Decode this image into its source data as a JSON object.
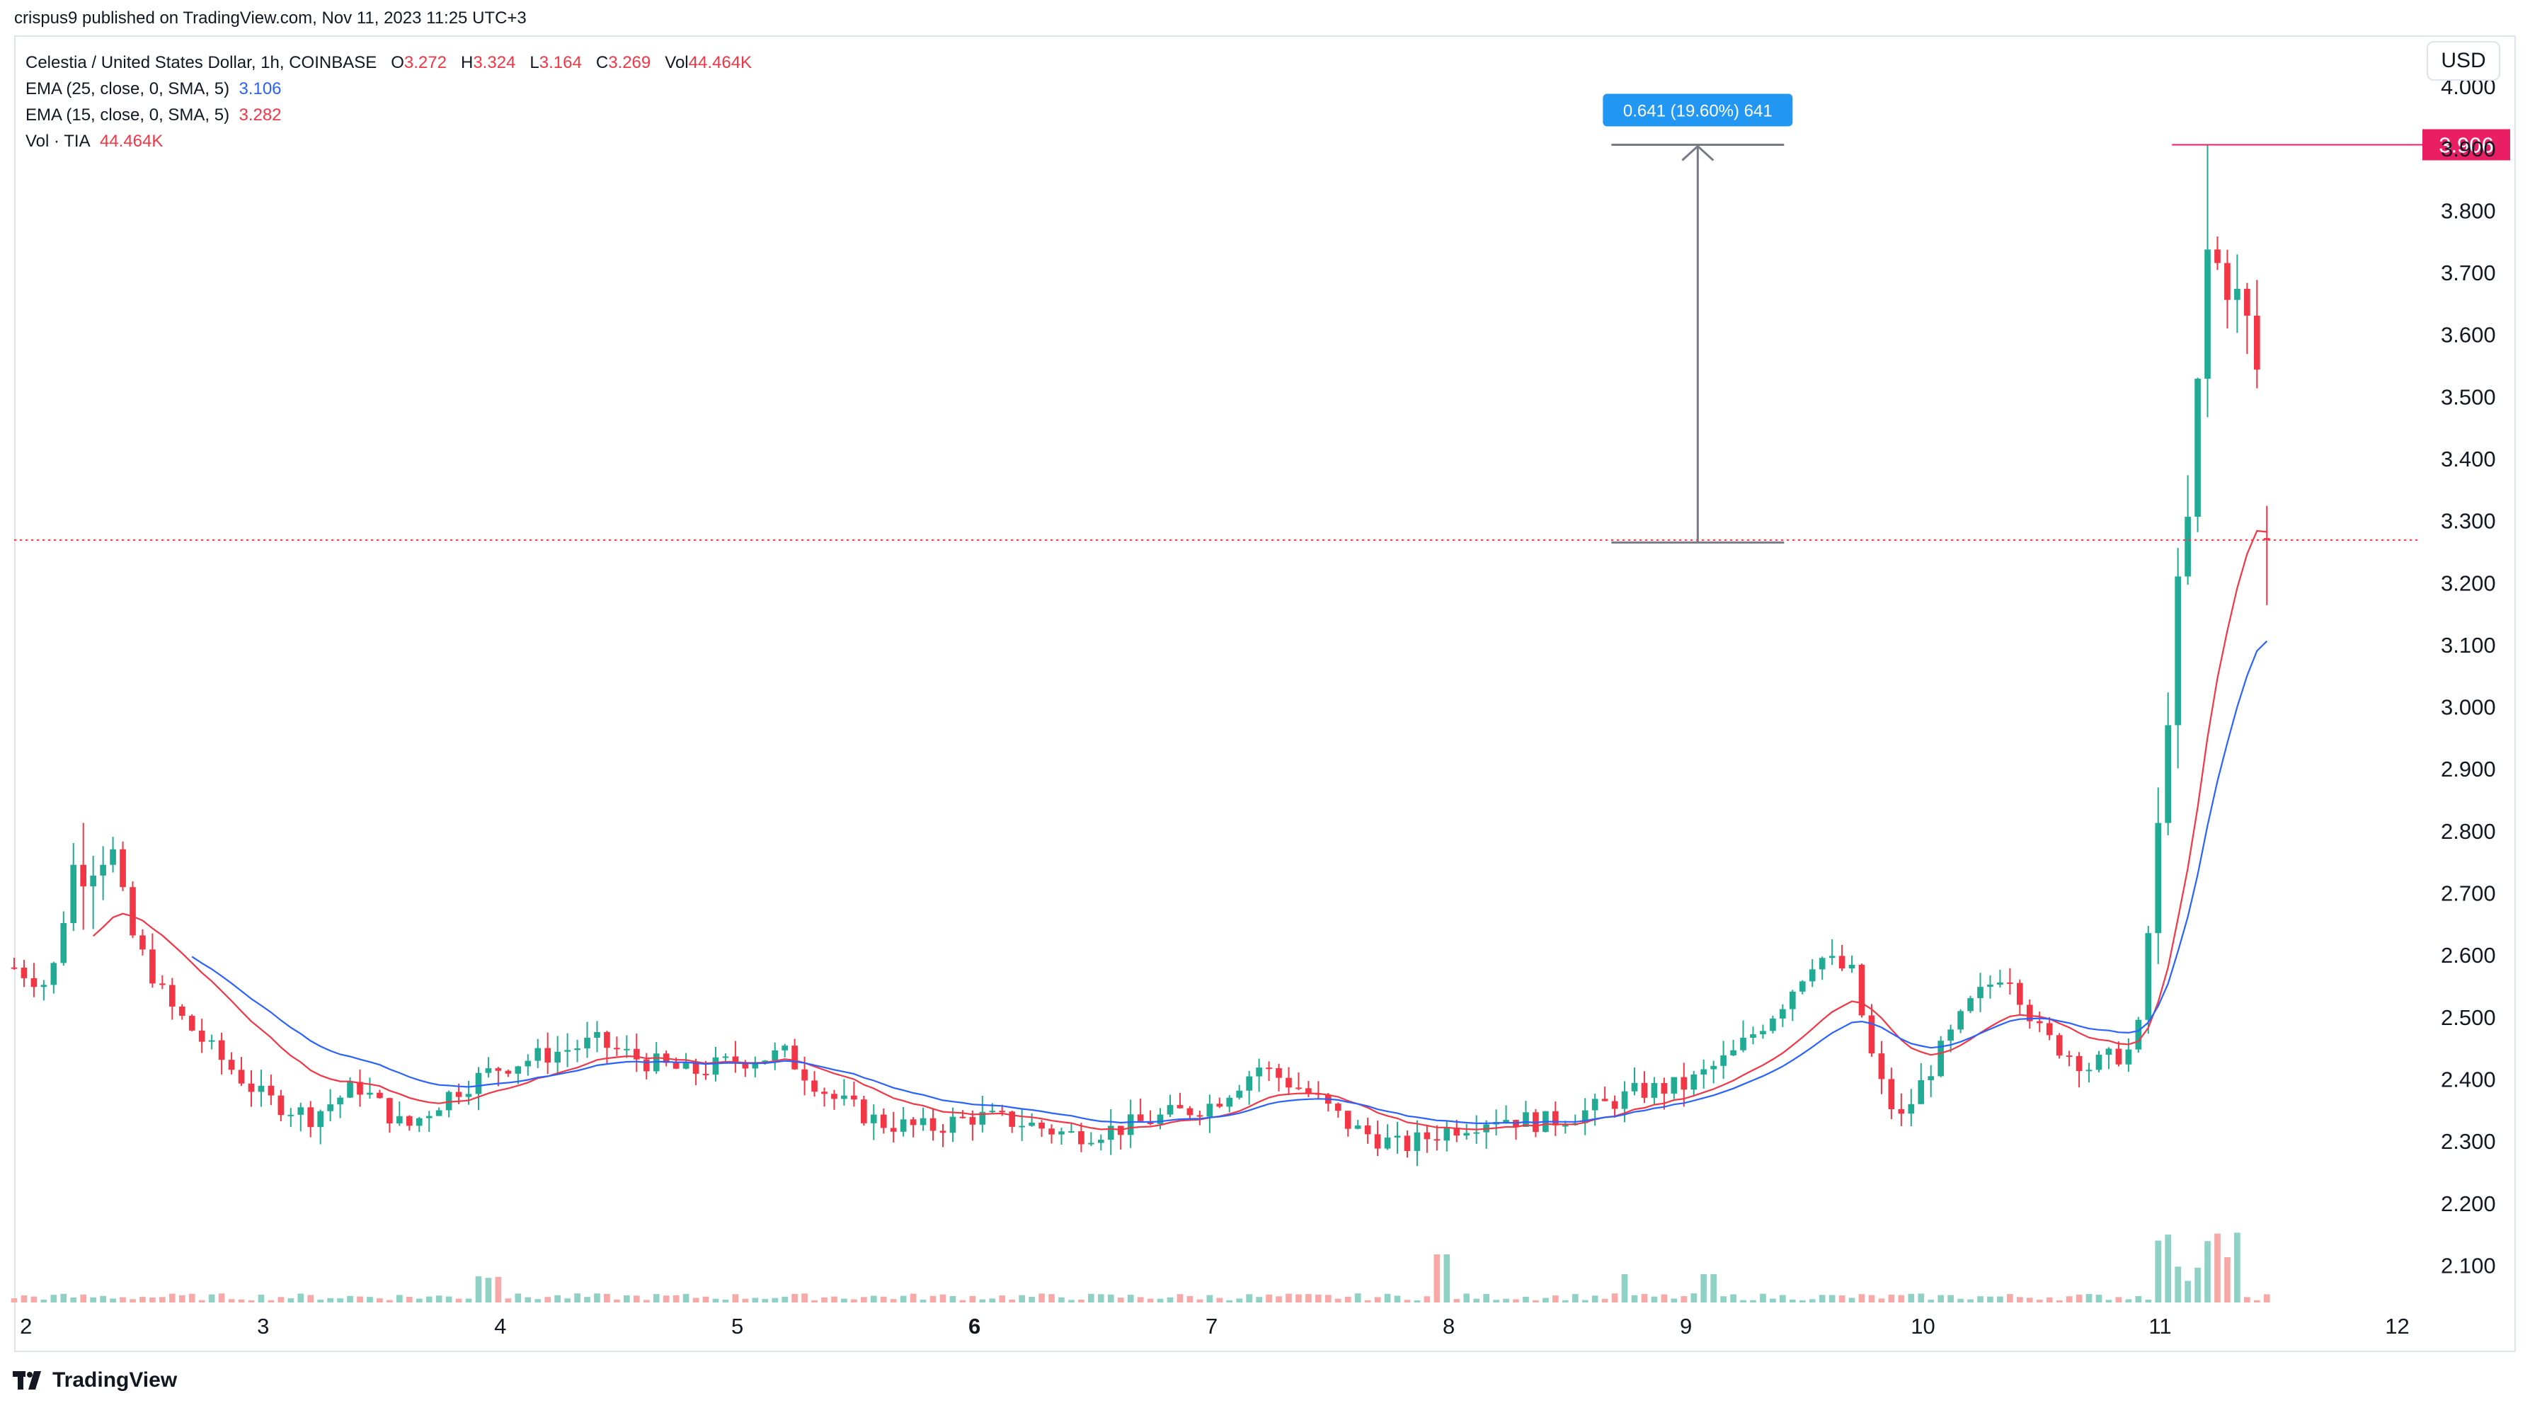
{
  "header": {
    "published_line": "crispus9 published on TradingView.com, Nov 11, 2023 11:25 UTC+3"
  },
  "legend": {
    "symbol": "Celestia / United States Dollar, 1h, COINBASE",
    "o_key": "O",
    "o_val": "3.272",
    "h_key": "H",
    "h_val": "3.324",
    "l_key": "L",
    "l_val": "3.164",
    "c_key": "C",
    "c_val": "3.269",
    "vol_key": "Vol",
    "vol_val": "44.464K",
    "ema1_label": "EMA (25, close, 0, SMA, 5)",
    "ema1_val": "3.106",
    "ema2_label": "EMA (15, close, 0, SMA, 5)",
    "ema2_val": "3.282",
    "vol_label": "Vol · TIA",
    "vol_label_val": "44.464K"
  },
  "currency_button": "USD",
  "measure_label": "0.641 (19.60%) 641",
  "price_tag": "3.906",
  "footer": {
    "brand": "TradingView"
  },
  "colors": {
    "up": "#22ab94",
    "down": "#f23645",
    "ema25": "#2962ff",
    "ema15": "#f23645",
    "vol_up": "#8fd1c5",
    "vol_down": "#f7a9a7",
    "measure": "#2196f3",
    "tag": "#e91e63"
  },
  "chart_data": {
    "type": "candlestick",
    "symbol": "Celestia / United States Dollar",
    "interval": "1h",
    "y_range": [
      2.04,
      4.08
    ],
    "y_ticks": [
      "4.000",
      "3.900",
      "3.800",
      "3.700",
      "3.600",
      "3.500",
      "3.400",
      "3.300",
      "3.200",
      "3.100",
      "3.000",
      "2.900",
      "2.800",
      "2.700",
      "2.600",
      "2.500",
      "2.400",
      "2.300",
      "2.200",
      "2.100"
    ],
    "x_range": [
      1.95,
      12.1
    ],
    "x_ticks": [
      {
        "value": 2,
        "label": "2"
      },
      {
        "value": 3,
        "label": "3"
      },
      {
        "value": 4,
        "label": "4"
      },
      {
        "value": 5,
        "label": "5"
      },
      {
        "value": 6,
        "label": "6",
        "bold": true
      },
      {
        "value": 7,
        "label": "7"
      },
      {
        "value": 8,
        "label": "8"
      },
      {
        "value": 9,
        "label": "9"
      },
      {
        "value": 10,
        "label": "10"
      },
      {
        "value": 11,
        "label": "11"
      },
      {
        "value": 12,
        "label": "12"
      }
    ],
    "price_anchors": [
      [
        1.95,
        2.58
      ],
      [
        2.1,
        2.55
      ],
      [
        2.2,
        2.74
      ],
      [
        2.35,
        2.78
      ],
      [
        2.45,
        2.63
      ],
      [
        2.6,
        2.52
      ],
      [
        2.8,
        2.44
      ],
      [
        3.0,
        2.37
      ],
      [
        3.2,
        2.34
      ],
      [
        3.4,
        2.39
      ],
      [
        3.6,
        2.32
      ],
      [
        3.8,
        2.38
      ],
      [
        4.0,
        2.42
      ],
      [
        4.2,
        2.44
      ],
      [
        4.4,
        2.46
      ],
      [
        4.6,
        2.43
      ],
      [
        4.8,
        2.41
      ],
      [
        5.0,
        2.43
      ],
      [
        5.2,
        2.44
      ],
      [
        5.4,
        2.37
      ],
      [
        5.6,
        2.33
      ],
      [
        5.8,
        2.32
      ],
      [
        6.0,
        2.34
      ],
      [
        6.2,
        2.33
      ],
      [
        6.4,
        2.31
      ],
      [
        6.6,
        2.32
      ],
      [
        6.8,
        2.34
      ],
      [
        7.0,
        2.36
      ],
      [
        7.2,
        2.42
      ],
      [
        7.4,
        2.38
      ],
      [
        7.6,
        2.32
      ],
      [
        7.8,
        2.29
      ],
      [
        8.0,
        2.32
      ],
      [
        8.2,
        2.34
      ],
      [
        8.4,
        2.33
      ],
      [
        8.6,
        2.35
      ],
      [
        8.8,
        2.38
      ],
      [
        9.0,
        2.39
      ],
      [
        9.2,
        2.44
      ],
      [
        9.4,
        2.52
      ],
      [
        9.55,
        2.6
      ],
      [
        9.7,
        2.57
      ],
      [
        9.8,
        2.41
      ],
      [
        9.9,
        2.33
      ],
      [
        10.05,
        2.43
      ],
      [
        10.2,
        2.52
      ],
      [
        10.35,
        2.58
      ],
      [
        10.5,
        2.47
      ],
      [
        10.7,
        2.42
      ],
      [
        10.9,
        2.45
      ],
      [
        11.0,
        2.82
      ],
      [
        11.05,
        3.1
      ],
      [
        11.12,
        3.3
      ],
      [
        11.2,
        3.73
      ],
      [
        11.3,
        3.68
      ],
      [
        11.4,
        3.58
      ],
      [
        11.47,
        3.27
      ]
    ],
    "high_marker": {
      "value": 3.906
    },
    "last_price": {
      "value": 3.269
    },
    "measure": {
      "x": 9.05,
      "from": 3.265,
      "to": 3.906,
      "change": 0.641,
      "percent": 19.6
    },
    "ema25_end": 3.106,
    "ema15_end": 3.282,
    "volume_last": "44.464K"
  }
}
